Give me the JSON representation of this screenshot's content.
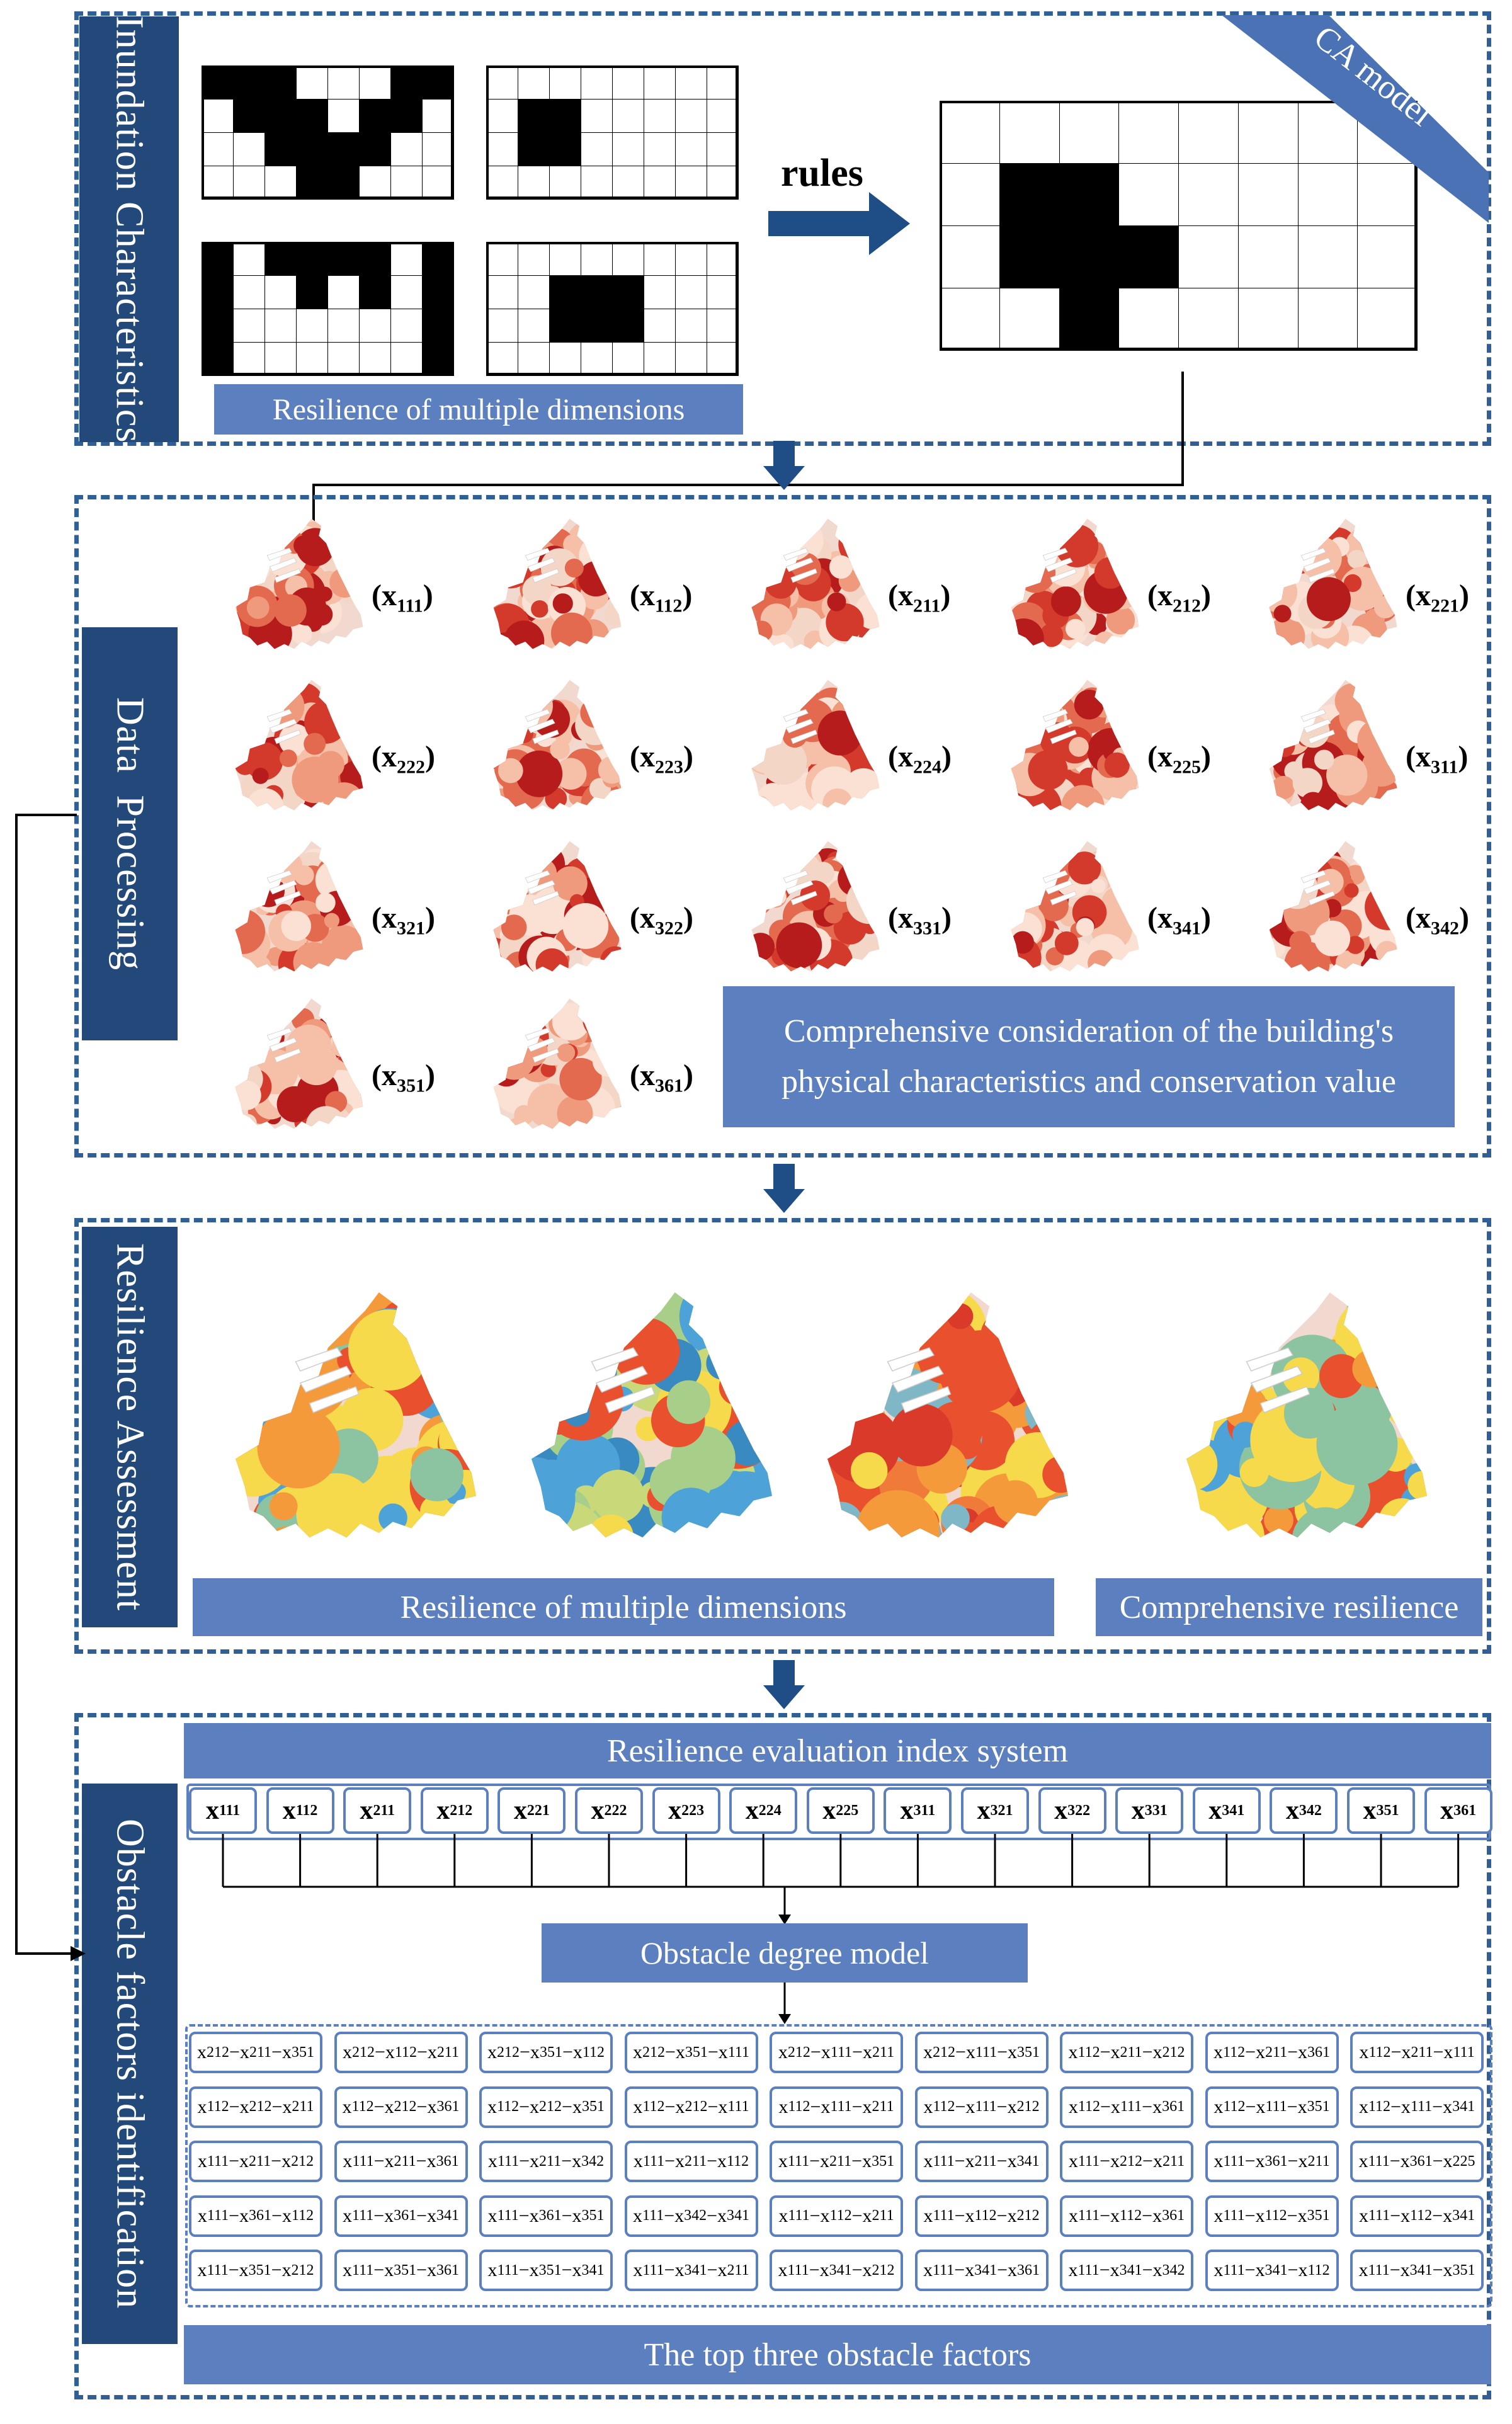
{
  "panel1": {
    "label": "Inundation Characteristics",
    "rules_label": "rules",
    "ca_tag": "CA model",
    "bar_label": "Resilience of multiple dimensions"
  },
  "panel2": {
    "label": "Data Processing",
    "note_line1": "Comprehensive consideration of the building's",
    "note_line2": "physical characteristics and conservation value",
    "maps": [
      {
        "base": "x",
        "sub": "111"
      },
      {
        "base": "x",
        "sub": "112"
      },
      {
        "base": "x",
        "sub": "211"
      },
      {
        "base": "x",
        "sub": "212"
      },
      {
        "base": "x",
        "sub": "221"
      },
      {
        "base": "x",
        "sub": "222"
      },
      {
        "base": "x",
        "sub": "223"
      },
      {
        "base": "x",
        "sub": "224"
      },
      {
        "base": "x",
        "sub": "225"
      },
      {
        "base": "x",
        "sub": "311"
      },
      {
        "base": "x",
        "sub": "321"
      },
      {
        "base": "x",
        "sub": "322"
      },
      {
        "base": "x",
        "sub": "331"
      },
      {
        "base": "x",
        "sub": "341"
      },
      {
        "base": "x",
        "sub": "342"
      },
      {
        "base": "x",
        "sub": "351"
      },
      {
        "base": "x",
        "sub": "361"
      }
    ]
  },
  "panel3": {
    "label": "Resilience Assessment",
    "bar_multi": "Resilience of multiple dimensions",
    "bar_comp": "Comprehensive resilience"
  },
  "panel4": {
    "label": "Obstacle factors identification",
    "index_title": "Resilience evaluation index system",
    "indices": [
      "111",
      "112",
      "211",
      "212",
      "221",
      "222",
      "223",
      "224",
      "225",
      "311",
      "321",
      "322",
      "331",
      "341",
      "342",
      "351",
      "361"
    ],
    "model_label": "Obstacle degree model",
    "bottom_label": "The top three obstacle factors",
    "combos": [
      [
        [
          "212",
          "211",
          "351"
        ],
        [
          "212",
          "112",
          "211"
        ],
        [
          "212",
          "351",
          "112"
        ],
        [
          "212",
          "351",
          "111"
        ],
        [
          "212",
          "111",
          "211"
        ],
        [
          "212",
          "111",
          "351"
        ],
        [
          "112",
          "211",
          "212"
        ],
        [
          "112",
          "211",
          "361"
        ],
        [
          "112",
          "211",
          "111"
        ]
      ],
      [
        [
          "112",
          "212",
          "211"
        ],
        [
          "112",
          "212",
          "361"
        ],
        [
          "112",
          "212",
          "351"
        ],
        [
          "112",
          "212",
          "111"
        ],
        [
          "112",
          "111",
          "211"
        ],
        [
          "112",
          "111",
          "212"
        ],
        [
          "112",
          "111",
          "361"
        ],
        [
          "112",
          "111",
          "351"
        ],
        [
          "112",
          "111",
          "341"
        ]
      ],
      [
        [
          "111",
          "211",
          "212"
        ],
        [
          "111",
          "211",
          "361"
        ],
        [
          "111",
          "211",
          "342"
        ],
        [
          "111",
          "211",
          "112"
        ],
        [
          "111",
          "211",
          "351"
        ],
        [
          "111",
          "211",
          "341"
        ],
        [
          "111",
          "212",
          "211"
        ],
        [
          "111",
          "361",
          "211"
        ],
        [
          "111",
          "361",
          "225"
        ]
      ],
      [
        [
          "111",
          "361",
          "112"
        ],
        [
          "111",
          "361",
          "341"
        ],
        [
          "111",
          "361",
          "351"
        ],
        [
          "111",
          "342",
          "341"
        ],
        [
          "111",
          "112",
          "211"
        ],
        [
          "111",
          "112",
          "212"
        ],
        [
          "111",
          "112",
          "361"
        ],
        [
          "111",
          "112",
          "351"
        ],
        [
          "111",
          "112",
          "341"
        ]
      ],
      [
        [
          "111",
          "351",
          "212"
        ],
        [
          "111",
          "351",
          "361"
        ],
        [
          "111",
          "351",
          "341"
        ],
        [
          "111",
          "341",
          "211"
        ],
        [
          "111",
          "341",
          "212"
        ],
        [
          "111",
          "341",
          "361"
        ],
        [
          "111",
          "341",
          "342"
        ],
        [
          "111",
          "341",
          "112"
        ],
        [
          "111",
          "341",
          "351"
        ]
      ]
    ]
  }
}
